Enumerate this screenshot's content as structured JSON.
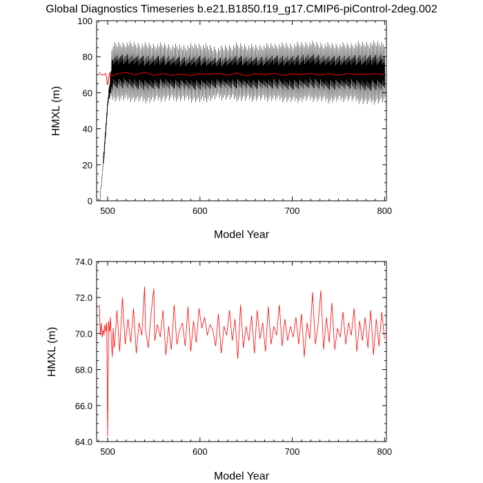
{
  "title": "Global Diagnostics Timeseries b.e21.B1850.f19_g17.CMIP6-piControl-2deg.002",
  "chart_data": [
    {
      "type": "line",
      "xlabel": "Model Year",
      "ylabel": "HMXL (m)",
      "xlim": [
        488,
        802
      ],
      "ylim": [
        0,
        100
      ],
      "xticks": [
        500,
        600,
        700,
        800
      ],
      "xtick_labels": [
        "500",
        "600",
        "700",
        "800"
      ],
      "yticks": [
        0,
        20,
        40,
        60,
        80,
        100
      ],
      "ytick_labels": [
        "0",
        "20",
        "40",
        "60",
        "80",
        "100"
      ],
      "series": [
        {
          "role": "monthly-envelope",
          "color": "#000000",
          "x": [
            491,
            495,
            500,
            505,
            520,
            540,
            560,
            580,
            600,
            620,
            640,
            660,
            680,
            700,
            720,
            740,
            760,
            780,
            800
          ],
          "max": [
            0,
            22,
            56,
            88,
            89,
            88,
            88,
            87,
            88,
            86,
            88,
            87,
            88,
            88,
            89,
            88,
            88,
            89,
            89
          ],
          "min": [
            0,
            20,
            54,
            55,
            55,
            54,
            55,
            55,
            54,
            56,
            55,
            55,
            55,
            54,
            55,
            54,
            55,
            53,
            54
          ]
        },
        {
          "role": "annual-mean",
          "color": "#ff0000",
          "x": [
            491,
            492,
            495,
            498,
            500,
            502,
            505,
            510,
            520,
            530,
            540,
            550,
            560,
            570,
            580,
            590,
            600,
            610,
            620,
            630,
            640,
            650,
            660,
            670,
            680,
            690,
            700,
            710,
            720,
            730,
            740,
            750,
            760,
            770,
            780,
            790,
            800
          ],
          "y": [
            71.5,
            70.2,
            69.8,
            70.6,
            64.3,
            70.9,
            69.2,
            70.5,
            71.2,
            70.0,
            71.4,
            69.6,
            70.7,
            69.6,
            70.4,
            69.5,
            70.5,
            70.3,
            70.8,
            69.7,
            70.9,
            69.4,
            70.6,
            70.0,
            70.8,
            69.7,
            70.5,
            70.1,
            70.8,
            69.8,
            70.6,
            69.7,
            70.7,
            70.1,
            70.2,
            70.6,
            70.0
          ]
        }
      ]
    },
    {
      "type": "line",
      "xlabel": "Model Year",
      "ylabel": "HMXL (m)",
      "xlim": [
        488,
        802
      ],
      "ylim": [
        64,
        74
      ],
      "xticks": [
        500,
        600,
        700,
        800
      ],
      "xtick_labels": [
        "500",
        "600",
        "700",
        "800"
      ],
      "yticks": [
        64,
        66,
        68,
        70,
        72,
        74
      ],
      "ytick_labels": [
        "64.0",
        "66.0",
        "68.0",
        "70.0",
        "72.0",
        "74.0"
      ],
      "series": [
        {
          "role": "annual-mean",
          "color": "#ff0000",
          "x": [
            491,
            492,
            493,
            494,
            495,
            496,
            497,
            498,
            499,
            500,
            501,
            502,
            503,
            504,
            505,
            506,
            507,
            508,
            510,
            513,
            516,
            519,
            522,
            525,
            528,
            531,
            534,
            537,
            540,
            541,
            544,
            547,
            550,
            551,
            554,
            557,
            560,
            563,
            566,
            569,
            572,
            575,
            578,
            581,
            584,
            587,
            590,
            593,
            596,
            599,
            602,
            605,
            608,
            611,
            614,
            617,
            620,
            623,
            626,
            629,
            632,
            635,
            638,
            641,
            644,
            647,
            650,
            653,
            656,
            659,
            662,
            665,
            668,
            671,
            674,
            677,
            680,
            683,
            686,
            689,
            692,
            695,
            698,
            701,
            704,
            707,
            710,
            713,
            716,
            719,
            722,
            725,
            728,
            731,
            734,
            737,
            740,
            743,
            746,
            749,
            752,
            755,
            758,
            761,
            764,
            767,
            770,
            773,
            776,
            779,
            782,
            785,
            788,
            791,
            794,
            797,
            800
          ],
          "y": [
            71.6,
            69.9,
            70.6,
            69.8,
            70.2,
            69.9,
            70.5,
            70.1,
            70.6,
            64.3,
            70.7,
            70.1,
            70.9,
            69.6,
            68.7,
            70.3,
            69.2,
            69.7,
            71.3,
            69.0,
            72.0,
            69.4,
            70.8,
            69.5,
            71.4,
            68.9,
            70.6,
            69.9,
            72.6,
            70.2,
            69.2,
            71.1,
            72.5,
            69.6,
            70.5,
            69.8,
            71.3,
            68.8,
            70.4,
            69.1,
            71.6,
            69.4,
            70.2,
            70.6,
            69.3,
            71.5,
            69.0,
            70.7,
            69.5,
            71.4,
            70.3,
            70.9,
            69.9,
            70.5,
            70.2,
            69.3,
            71.1,
            68.9,
            70.4,
            69.9,
            71.3,
            69.6,
            70.8,
            68.6,
            71.6,
            69.2,
            70.4,
            69.6,
            71.0,
            68.9,
            71.3,
            69.7,
            70.6,
            69.0,
            71.5,
            69.4,
            70.4,
            69.9,
            71.6,
            69.3,
            70.8,
            69.6,
            70.4,
            69.8,
            70.9,
            69.4,
            71.1,
            68.7,
            70.6,
            69.7,
            72.3,
            69.4,
            70.5,
            72.4,
            69.1,
            70.9,
            69.5,
            71.7,
            69.1,
            70.3,
            69.8,
            71.2,
            69.4,
            70.6,
            69.9,
            71.4,
            69.0,
            70.7,
            69.6,
            70.9,
            69.2,
            71.3,
            68.8,
            70.8,
            69.3,
            71.2,
            69.7
          ]
        }
      ]
    }
  ]
}
